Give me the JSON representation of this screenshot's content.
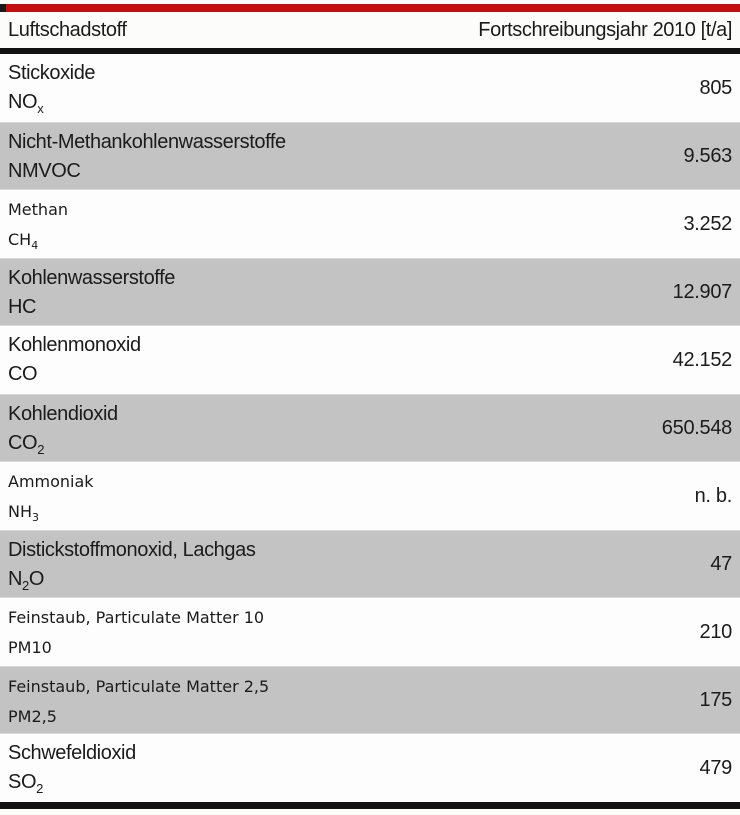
{
  "table": {
    "header": {
      "col_pollutant": "Luftschadstoff",
      "col_value": "Fortschreibungsjahr 2010 [t/a]"
    },
    "rows": [
      {
        "name": "Stickoxide",
        "formula": [
          {
            "text": "NO"
          },
          {
            "text": "x",
            "sub": true
          }
        ],
        "value": "805",
        "shaded": false,
        "wide": false
      },
      {
        "name": "Nicht-Methankohlenwasserstoffe",
        "formula": [
          {
            "text": "NMVOC"
          }
        ],
        "value": "9.563",
        "shaded": true,
        "wide": false
      },
      {
        "name": "Methan",
        "formula": [
          {
            "text": "CH"
          },
          {
            "text": "4",
            "sub": true
          }
        ],
        "value": "3.252",
        "shaded": false,
        "wide": true
      },
      {
        "name": "Kohlenwasserstoffe",
        "formula": [
          {
            "text": "HC"
          }
        ],
        "value": "12.907",
        "shaded": true,
        "wide": false
      },
      {
        "name": "Kohlenmonoxid",
        "formula": [
          {
            "text": "CO"
          }
        ],
        "value": "42.152",
        "shaded": false,
        "wide": false
      },
      {
        "name": "Kohlendioxid",
        "formula": [
          {
            "text": "CO"
          },
          {
            "text": "2",
            "sub": true
          }
        ],
        "value": "650.548",
        "shaded": true,
        "wide": false
      },
      {
        "name": "Ammoniak",
        "formula": [
          {
            "text": "NH"
          },
          {
            "text": "3",
            "sub": true
          }
        ],
        "value": "n. b.",
        "shaded": false,
        "wide": true
      },
      {
        "name": "Distickstoffmonoxid, Lachgas",
        "formula": [
          {
            "text": "N"
          },
          {
            "text": "2",
            "sub": true
          },
          {
            "text": "O"
          }
        ],
        "value": "47",
        "shaded": true,
        "wide": false
      },
      {
        "name": "Feinstaub, Particulate Matter 10",
        "formula": [
          {
            "text": "PM10"
          }
        ],
        "value": "210",
        "shaded": false,
        "wide": true
      },
      {
        "name": "Feinstaub, Particulate Matter 2,5",
        "formula": [
          {
            "text": "PM2,5"
          }
        ],
        "value": "175",
        "shaded": true,
        "wide": true
      },
      {
        "name": "Schwefeldioxid",
        "formula": [
          {
            "text": "SO"
          },
          {
            "text": "2",
            "sub": true
          }
        ],
        "value": "479",
        "shaded": false,
        "wide": false
      }
    ]
  },
  "colors": {
    "accent_red": "#c40f0f",
    "rule_black": "#121212",
    "row_shaded": "#c3c3c3",
    "row_plain": "#fdfdfd"
  },
  "chart_data": {
    "type": "table",
    "title": "Luftschadstoff — Fortschreibungsjahr 2010 [t/a]",
    "columns": [
      "Luftschadstoff",
      "Fortschreibungsjahr 2010 [t/a]"
    ],
    "rows": [
      [
        "Stickoxide (NOx)",
        "805"
      ],
      [
        "Nicht-Methankohlenwasserstoffe (NMVOC)",
        "9.563"
      ],
      [
        "Methan (CH4)",
        "3.252"
      ],
      [
        "Kohlenwasserstoffe (HC)",
        "12.907"
      ],
      [
        "Kohlenmonoxid (CO)",
        "42.152"
      ],
      [
        "Kohlendioxid (CO2)",
        "650.548"
      ],
      [
        "Ammoniak (NH3)",
        "n. b."
      ],
      [
        "Distickstoffmonoxid, Lachgas (N2O)",
        "47"
      ],
      [
        "Feinstaub, Particulate Matter 10 (PM10)",
        "210"
      ],
      [
        "Feinstaub, Particulate Matter 2,5 (PM2,5)",
        "175"
      ],
      [
        "Schwefeldioxid (SO2)",
        "479"
      ]
    ]
  }
}
